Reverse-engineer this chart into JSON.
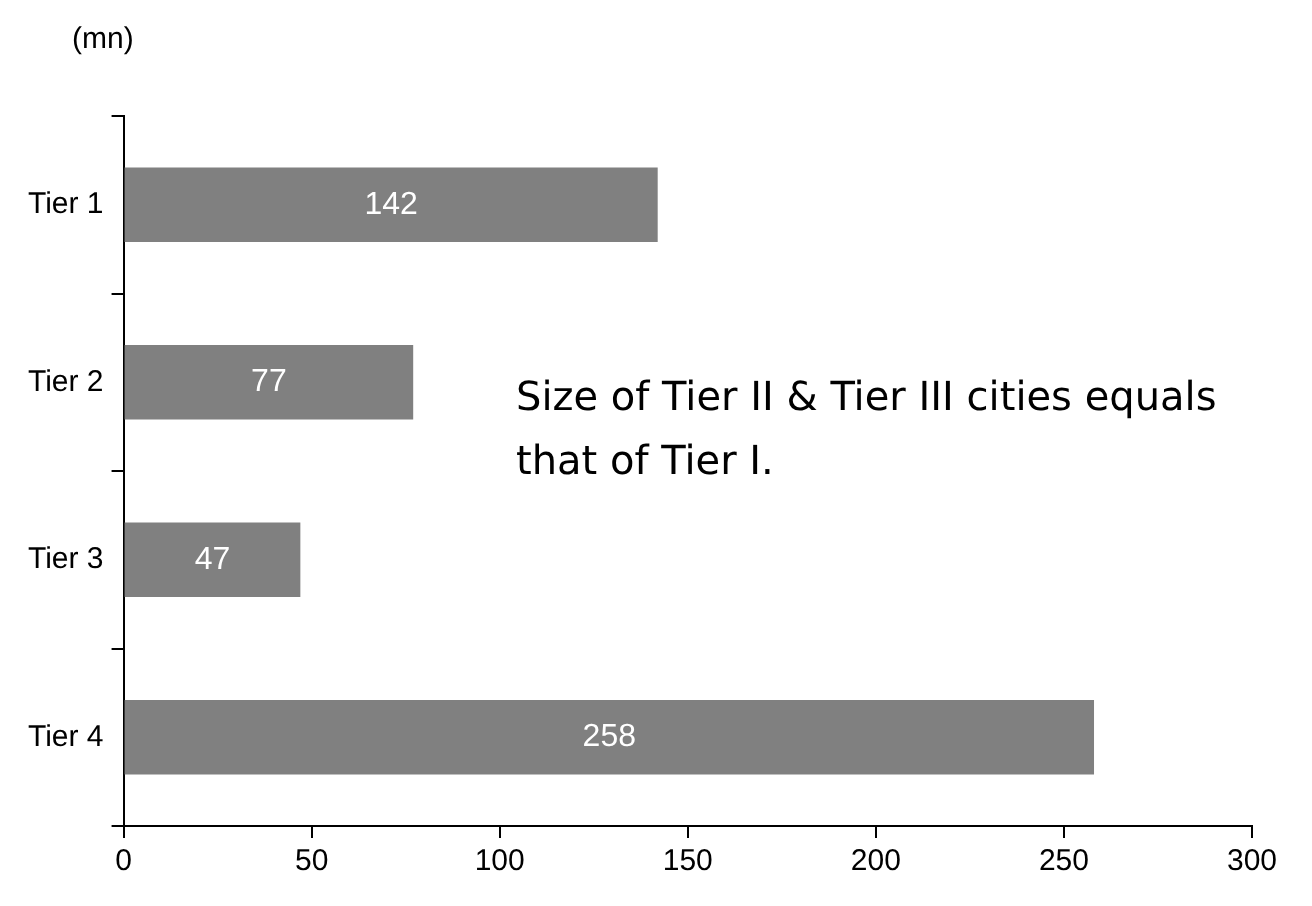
{
  "chart_data": {
    "type": "bar",
    "orientation": "horizontal",
    "ylabel": "(mn)",
    "categories": [
      "Tier 1",
      "Tier 2",
      "Tier 3",
      "Tier 4"
    ],
    "values": [
      142,
      77,
      47,
      258
    ],
    "color": "#808080",
    "data_labels": true,
    "xlim": [
      0,
      300
    ],
    "xticks": [
      0,
      50,
      100,
      150,
      200,
      250,
      300
    ],
    "grid": false,
    "legend": false,
    "annotations": [
      "Size of Tier II & Tier III cities equals that of Tier I."
    ]
  }
}
